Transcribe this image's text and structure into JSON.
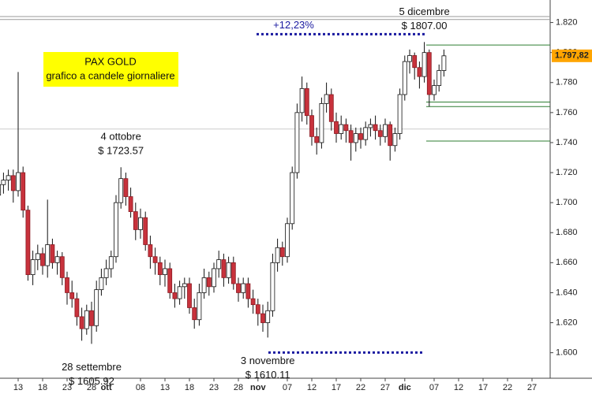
{
  "chart_data": {
    "type": "candlestick",
    "title": "PAX GOLD",
    "subtitle": "grafico a candele giornaliere",
    "categories": [
      null,
      null,
      null,
      null,
      "13",
      null,
      null,
      null,
      null,
      "18",
      null,
      null,
      null,
      null,
      "23",
      null,
      null,
      null,
      null,
      "28",
      null,
      null,
      "ott",
      null,
      null,
      null,
      null,
      null,
      null,
      "08",
      null,
      null,
      null,
      null,
      "13",
      null,
      null,
      null,
      null,
      "18",
      null,
      null,
      null,
      null,
      "23",
      null,
      null,
      null,
      null,
      "28",
      null,
      null,
      null,
      "nov",
      null,
      null,
      null,
      null,
      null,
      "07",
      null,
      null,
      null,
      null,
      "12",
      null,
      null,
      null,
      null,
      "17",
      null,
      null,
      null,
      null,
      "22",
      null,
      null,
      null,
      null,
      "27",
      null,
      null,
      null,
      "dic",
      null,
      null,
      null,
      null,
      null,
      "07",
      null,
      null,
      null,
      null,
      "12",
      null,
      null,
      null,
      null,
      "17",
      null,
      null,
      null,
      null,
      "22",
      null,
      null,
      null,
      null,
      "27",
      null,
      null,
      null
    ],
    "open": [
      1705,
      1712,
      1715,
      1718,
      1708,
      1720,
      1695,
      1652,
      1662,
      1666,
      1658,
      1672,
      1660,
      1664,
      1650,
      1640,
      1636,
      1624,
      1616,
      1628,
      1618,
      1642,
      1650,
      1656,
      1664,
      1700,
      1716,
      1704,
      1694,
      1682,
      1690,
      1672,
      1664,
      1660,
      1652,
      1656,
      1640,
      1636,
      1644,
      1646,
      1630,
      1622,
      1640,
      1650,
      1644,
      1656,
      1662,
      1650,
      1660,
      1646,
      1640,
      1646,
      1636,
      1632,
      1626,
      1620,
      1628,
      1660,
      1670,
      1664,
      1686,
      1720,
      1760,
      1776,
      1758,
      1744,
      1740,
      1766,
      1772,
      1754,
      1746,
      1752,
      1748,
      1740,
      1746,
      1742,
      1750,
      1752,
      1748,
      1744,
      1752,
      1738,
      1746,
      1772,
      1794,
      1798,
      1790,
      1784,
      1800,
      1772,
      1778,
      1788,
      null,
      null,
      null,
      null,
      null,
      null,
      null,
      null,
      null,
      null,
      null,
      null,
      null,
      null,
      null,
      null,
      null,
      null,
      null,
      null,
      null
    ],
    "high": [
      1716,
      1720,
      1722,
      1722,
      1787,
      1724,
      1698,
      1668,
      1672,
      1670,
      1702,
      1676,
      1668,
      1667,
      1654,
      1648,
      1640,
      1630,
      1632,
      1634,
      1648,
      1656,
      1662,
      1668,
      1705,
      1723.57,
      1720,
      1710,
      1700,
      1696,
      1694,
      1678,
      1670,
      1664,
      1662,
      1660,
      1646,
      1648,
      1650,
      1650,
      1636,
      1646,
      1656,
      1654,
      1660,
      1668,
      1666,
      1664,
      1664,
      1650,
      1650,
      1650,
      1642,
      1636,
      1632,
      1634,
      1666,
      1676,
      1674,
      1690,
      1724,
      1766,
      1784,
      1780,
      1762,
      1750,
      1770,
      1780,
      1776,
      1760,
      1758,
      1756,
      1752,
      1750,
      1750,
      1754,
      1756,
      1758,
      1752,
      1756,
      1754,
      1750,
      1776,
      1798,
      1802,
      1800,
      1794,
      1807,
      1802,
      1782,
      1792,
      1802,
      null,
      null,
      null,
      null,
      null,
      null,
      null,
      null,
      null,
      null,
      null,
      null,
      null,
      null,
      null,
      null,
      null,
      null,
      null,
      null,
      null
    ],
    "low": [
      1700,
      1706,
      1708,
      1700,
      1704,
      1690,
      1648,
      1645,
      1655,
      1652,
      1650,
      1656,
      1652,
      1645,
      1632,
      1630,
      1618,
      1608,
      1612,
      1605.92,
      1614,
      1638,
      1645,
      1650,
      1660,
      1696,
      1698,
      1690,
      1675,
      1676,
      1668,
      1656,
      1652,
      1645,
      1644,
      1636,
      1630,
      1632,
      1636,
      1626,
      1616,
      1618,
      1636,
      1638,
      1640,
      1650,
      1644,
      1646,
      1642,
      1634,
      1636,
      1630,
      1626,
      1618,
      1614,
      1610.11,
      1624,
      1654,
      1658,
      1660,
      1682,
      1716,
      1754,
      1752,
      1738,
      1732,
      1736,
      1760,
      1748,
      1740,
      1742,
      1740,
      1728,
      1734,
      1736,
      1738,
      1744,
      1742,
      1738,
      1740,
      1728,
      1734,
      1742,
      1768,
      1786,
      1782,
      1776,
      1780,
      1764,
      1768,
      1774,
      1784,
      null,
      null,
      null,
      null,
      null,
      null,
      null,
      null,
      null,
      null,
      null,
      null,
      null,
      null,
      null,
      null,
      null,
      null,
      null,
      null,
      null
    ],
    "close": [
      1712,
      1715,
      1718,
      1708,
      1720,
      1695,
      1652,
      1662,
      1666,
      1658,
      1672,
      1660,
      1664,
      1650,
      1640,
      1636,
      1624,
      1616,
      1628,
      1618,
      1642,
      1650,
      1656,
      1664,
      1700,
      1716,
      1704,
      1694,
      1682,
      1690,
      1672,
      1664,
      1660,
      1652,
      1656,
      1640,
      1636,
      1644,
      1646,
      1630,
      1622,
      1640,
      1650,
      1644,
      1656,
      1662,
      1650,
      1660,
      1646,
      1640,
      1646,
      1636,
      1632,
      1626,
      1620,
      1628,
      1660,
      1670,
      1664,
      1686,
      1720,
      1760,
      1776,
      1758,
      1744,
      1740,
      1766,
      1772,
      1754,
      1746,
      1752,
      1748,
      1740,
      1746,
      1742,
      1750,
      1752,
      1748,
      1744,
      1752,
      1738,
      1746,
      1772,
      1794,
      1798,
      1790,
      1784,
      1800,
      1772,
      1778,
      1788,
      1797.82,
      null,
      null,
      null,
      null,
      null,
      null,
      null,
      null,
      null,
      null,
      null,
      null,
      null,
      null,
      null,
      null,
      null,
      null,
      null,
      null,
      null
    ],
    "up_color": "#ffffff",
    "down_color": "#c8323c",
    "ylim": [
      1583,
      1835
    ],
    "yticks": [
      {
        "value": 1600,
        "label": "1.600"
      },
      {
        "value": 1620,
        "label": "1.620"
      },
      {
        "value": 1640,
        "label": "1.640"
      },
      {
        "value": 1660,
        "label": "1.660"
      },
      {
        "value": 1680,
        "label": "1.680"
      },
      {
        "value": 1700,
        "label": "1.700"
      },
      {
        "value": 1720,
        "label": "1.720"
      },
      {
        "value": 1740,
        "label": "1.740"
      },
      {
        "value": 1760,
        "label": "1.760"
      },
      {
        "value": 1780,
        "label": "1.780"
      },
      {
        "value": 1800,
        "label": "1.800"
      },
      {
        "value": 1820,
        "label": "1.820"
      }
    ],
    "last_price": {
      "value": 1797.82,
      "label": "1.797,82",
      "color": "#ffa500"
    },
    "annotations": [
      {
        "date": "4 ottobre",
        "label": "$ 1723.57",
        "value": 1723.57,
        "side": "high"
      },
      {
        "date": "28 settembre",
        "label": "$ 1605.92",
        "value": 1605.92,
        "side": "low"
      },
      {
        "date": "3 novembre",
        "label": "$ 1610.11",
        "value": 1610.11,
        "side": "low"
      },
      {
        "date": "5 dicembre",
        "label": "$ 1807.00",
        "value": 1807,
        "side": "high"
      }
    ],
    "range": {
      "label": "+12,23%",
      "from": 1610.11,
      "to": 1807,
      "color": "#1a1aa0"
    },
    "hlines": [
      {
        "value": 1822,
        "color": "#999999"
      },
      {
        "value": 1824,
        "color": "#999999"
      },
      {
        "value": 1805,
        "color": "#2e7d32"
      },
      {
        "value": 1767,
        "color": "#2e7d32"
      },
      {
        "value": 1764,
        "color": "#2e7d32"
      },
      {
        "value": 1749,
        "color": "#cccccc"
      },
      {
        "value": 1741,
        "color": "#2e7d32"
      }
    ]
  }
}
